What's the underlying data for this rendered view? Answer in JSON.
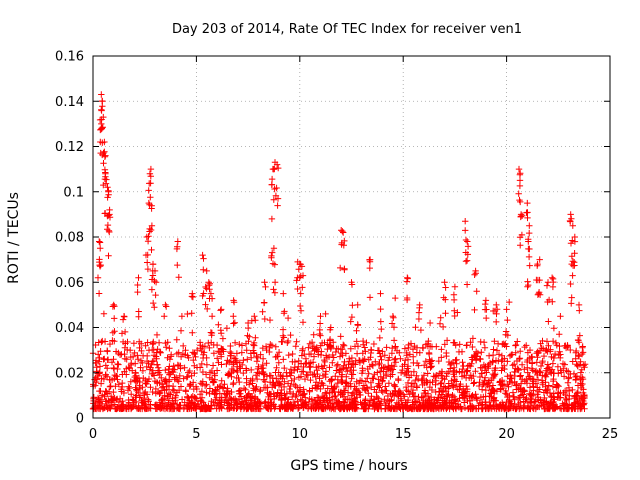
{
  "chart_data": {
    "type": "scatter",
    "title": "Day 203 of 2014, Rate Of TEC Index for receiver ven1",
    "xlabel": "GPS time / hours",
    "ylabel": "ROTI / TECUs",
    "xlim": [
      0,
      25
    ],
    "ylim": [
      0,
      0.16
    ],
    "xticks": [
      0,
      5,
      10,
      15,
      20,
      25
    ],
    "xtick_labels": [
      "0",
      "5",
      "10",
      "15",
      "20",
      "25"
    ],
    "yticks": [
      0,
      0.02,
      0.04,
      0.06,
      0.08,
      0.1,
      0.12,
      0.14,
      0.16
    ],
    "ytick_labels": [
      "0",
      "0.02",
      "0.04",
      "0.06",
      "0.08",
      "0.1",
      "0.12",
      "0.14",
      "0.16"
    ],
    "grid": true,
    "marker": "+",
    "series_color": "#ff0000",
    "series": [
      {
        "name": "ROTI",
        "description_x_range": [
          0,
          23.8
        ],
        "x": [
          0.3,
          0.4,
          0.45,
          0.5,
          0.55,
          0.6,
          0.7,
          0.75,
          0.8,
          0.35,
          0.4,
          0.6,
          2.6,
          2.7,
          2.8,
          2.75,
          2.85,
          2.9,
          3.0,
          4.1,
          5.3,
          5.5,
          5.6,
          5.7,
          8.7,
          8.8,
          8.9,
          8.65,
          8.75,
          9.9,
          10.0,
          10.1,
          12.0,
          12.1,
          12.5,
          13.4,
          18.0,
          18.1,
          20.6,
          20.65,
          20.7,
          21.0,
          21.1,
          21.05,
          21.6,
          22.2,
          23.1,
          23.2,
          23.3,
          23.15,
          1.0,
          1.5,
          2.2,
          3.5,
          4.3,
          4.8,
          6.2,
          6.8,
          7.5,
          7.8,
          8.3,
          9.2,
          11.0,
          11.5,
          12.8,
          13.9,
          14.5,
          15.2,
          15.8,
          16.3,
          17.0,
          17.5,
          18.5,
          19.0,
          19.5,
          20.0,
          21.5,
          22.0,
          22.6,
          23.5
        ],
        "y": [
          0.078,
          0.143,
          0.14,
          0.133,
          0.122,
          0.108,
          0.102,
          0.1,
          0.09,
          0.075,
          0.13,
          0.116,
          0.08,
          0.095,
          0.11,
          0.108,
          0.085,
          0.068,
          0.065,
          0.078,
          0.072,
          0.065,
          0.06,
          0.055,
          0.11,
          0.113,
          0.112,
          0.088,
          0.075,
          0.069,
          0.068,
          0.067,
          0.083,
          0.082,
          0.06,
          0.07,
          0.087,
          0.078,
          0.11,
          0.105,
          0.09,
          0.095,
          0.085,
          0.078,
          0.07,
          0.062,
          0.09,
          0.085,
          0.08,
          0.068,
          0.05,
          0.045,
          0.062,
          0.05,
          0.045,
          0.055,
          0.048,
          0.052,
          0.042,
          0.045,
          0.06,
          0.055,
          0.045,
          0.04,
          0.05,
          0.055,
          0.045,
          0.062,
          0.05,
          0.042,
          0.06,
          0.058,
          0.065,
          0.052,
          0.05,
          0.048,
          0.068,
          0.06,
          0.045,
          0.05
        ]
      }
    ]
  }
}
